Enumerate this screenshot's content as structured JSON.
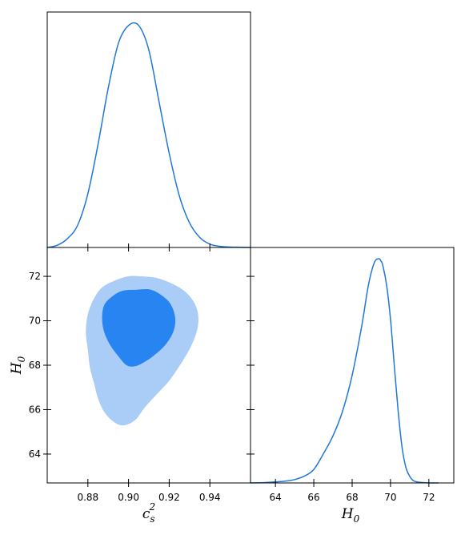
{
  "chart_data": [
    {
      "type": "line",
      "panel": "top-left",
      "x_name": "c_s^2",
      "xlim": [
        0.86,
        0.96
      ],
      "ylim": [
        0,
        1.05
      ],
      "x_ticks": [
        0.88,
        0.9,
        0.92,
        0.94
      ],
      "x": [
        0.86,
        0.865,
        0.87,
        0.875,
        0.88,
        0.885,
        0.89,
        0.895,
        0.9,
        0.905,
        0.91,
        0.915,
        0.92,
        0.925,
        0.93,
        0.935,
        0.94,
        0.945,
        0.95,
        0.955,
        0.96
      ],
      "y": [
        0.0,
        0.01,
        0.04,
        0.1,
        0.24,
        0.46,
        0.71,
        0.91,
        0.99,
        0.99,
        0.88,
        0.65,
        0.42,
        0.23,
        0.11,
        0.045,
        0.015,
        0.005,
        0.002,
        0.001,
        0.0
      ],
      "color": "#1f77d8"
    },
    {
      "type": "contour",
      "panel": "bottom-left",
      "xlabel_main": "c",
      "xlabel_sub": "s",
      "xlabel_sup": "2",
      "ylabel_main": "H",
      "ylabel_sub": "0",
      "xlim": [
        0.86,
        0.96
      ],
      "ylim": [
        62.7,
        73.3
      ],
      "x_ticks": [
        "0.88",
        "0.90",
        "0.92",
        "0.94"
      ],
      "y_ticks": [
        "64",
        "66",
        "68",
        "70",
        "72"
      ],
      "outer_color": "#aacdf8",
      "inner_color": "#2784f0",
      "outer_contour": [
        [
          0.906,
          72.0
        ],
        [
          0.915,
          71.9
        ],
        [
          0.925,
          71.5
        ],
        [
          0.931,
          71.0
        ],
        [
          0.934,
          70.4
        ],
        [
          0.934,
          69.7
        ],
        [
          0.931,
          68.9
        ],
        [
          0.926,
          68.1
        ],
        [
          0.92,
          67.3
        ],
        [
          0.914,
          66.7
        ],
        [
          0.908,
          66.1
        ],
        [
          0.904,
          65.6
        ],
        [
          0.9,
          65.35
        ],
        [
          0.896,
          65.3
        ],
        [
          0.892,
          65.5
        ],
        [
          0.888,
          65.9
        ],
        [
          0.885,
          66.5
        ],
        [
          0.883,
          67.2
        ],
        [
          0.881,
          67.9
        ],
        [
          0.88,
          68.7
        ],
        [
          0.879,
          69.5
        ],
        [
          0.88,
          70.3
        ],
        [
          0.883,
          71.0
        ],
        [
          0.887,
          71.5
        ],
        [
          0.893,
          71.8
        ],
        [
          0.9,
          72.0
        ]
      ],
      "inner_contour": [
        [
          0.904,
          71.4
        ],
        [
          0.911,
          71.4
        ],
        [
          0.917,
          71.1
        ],
        [
          0.921,
          70.7
        ],
        [
          0.923,
          70.1
        ],
        [
          0.922,
          69.5
        ],
        [
          0.918,
          68.9
        ],
        [
          0.912,
          68.4
        ],
        [
          0.907,
          68.1
        ],
        [
          0.903,
          67.95
        ],
        [
          0.899,
          68.0
        ],
        [
          0.895,
          68.4
        ],
        [
          0.891,
          68.9
        ],
        [
          0.888,
          69.5
        ],
        [
          0.887,
          70.1
        ],
        [
          0.888,
          70.7
        ],
        [
          0.892,
          71.1
        ],
        [
          0.897,
          71.35
        ]
      ]
    },
    {
      "type": "line",
      "panel": "bottom-right",
      "xlabel_main": "H",
      "xlabel_sub": "0",
      "xlim": [
        62.7,
        73.3
      ],
      "ylim": [
        0,
        1.05
      ],
      "x_ticks": [
        "64",
        "66",
        "68",
        "70",
        "72"
      ],
      "x": [
        62.7,
        63.5,
        64.5,
        65.0,
        65.5,
        66.0,
        66.5,
        67.0,
        67.5,
        68.0,
        68.5,
        68.8,
        69.0,
        69.2,
        69.4,
        69.5,
        69.6,
        69.8,
        70.0,
        70.2,
        70.4,
        70.6,
        70.8,
        71.0,
        71.2,
        71.5,
        72.0,
        72.5
      ],
      "y": [
        0.0,
        0.002,
        0.008,
        0.015,
        0.03,
        0.06,
        0.13,
        0.21,
        0.32,
        0.48,
        0.7,
        0.86,
        0.94,
        0.99,
        1.0,
        0.99,
        0.97,
        0.88,
        0.73,
        0.52,
        0.32,
        0.16,
        0.07,
        0.03,
        0.01,
        0.003,
        0.0,
        0.0
      ],
      "color": "#1f77d8"
    }
  ]
}
